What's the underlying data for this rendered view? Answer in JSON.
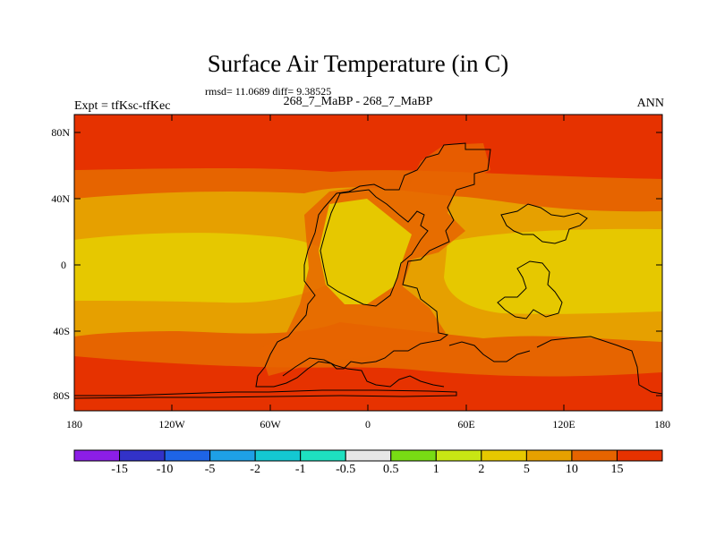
{
  "figure": {
    "title": "Surface Air Temperature (in C)",
    "stats": "rmsd= 11.0689 diff= 9.38525",
    "subtitle": "268_7_MaBP - 268_7_MaBP",
    "left_label": "Expt = tfKsc-tfKec",
    "right_label": "ANN"
  },
  "axes": {
    "y_ticks": [
      "80N",
      "40N",
      "0",
      "40S",
      "80S"
    ],
    "x_ticks": [
      "180",
      "120W",
      "60W",
      "0",
      "60E",
      "120E",
      "180"
    ]
  },
  "legend": {
    "colors": [
      "#8c1ee6",
      "#3232c8",
      "#1e64e6",
      "#1ea0e6",
      "#14c8d2",
      "#1ee0c0",
      "#e6e6e6",
      "#78dc14",
      "#c8e614",
      "#e6c800",
      "#e6a000",
      "#e66400",
      "#e63200"
    ],
    "labels": [
      "-15",
      "-10",
      "-5",
      "-2",
      "-1",
      "-0.5",
      "0.5",
      "1",
      "2",
      "5",
      "10",
      "15"
    ]
  },
  "map_colors": {
    "c15": "#e63200",
    "c10": "#e66400",
    "c5": "#e6a000",
    "c2": "#e6c800"
  }
}
